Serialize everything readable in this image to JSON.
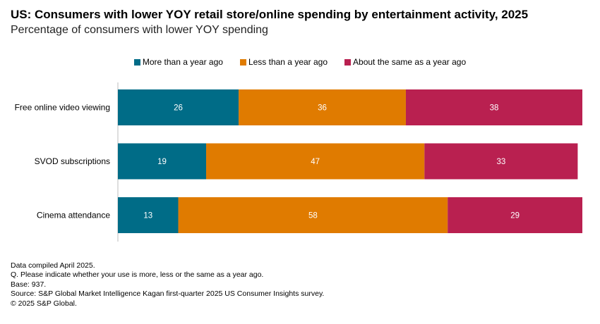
{
  "chart_data": {
    "type": "bar",
    "orientation": "horizontal",
    "stacked": true,
    "title": "US: Consumers with lower YOY retail store/online spending by entertainment activity, 2025",
    "subtitle": "Percentage of consumers with lower YOY spending",
    "categories": [
      "Free online video viewing",
      "SVOD subscriptions",
      "Cinema attendance"
    ],
    "series": [
      {
        "name": "More than a year ago",
        "color": "#006c87",
        "values": [
          26,
          19,
          13
        ]
      },
      {
        "name": "Less than a year ago",
        "color": "#e07b00",
        "values": [
          36,
          47,
          58
        ]
      },
      {
        "name": "About the same as a year ago",
        "color": "#b92050",
        "values": [
          38,
          33,
          29
        ]
      }
    ],
    "xlim": [
      0,
      100
    ],
    "legend": "top-center",
    "grid": false,
    "data_labels": true
  },
  "footnotes": [
    "Data compiled April 2025.",
    "Q. Please indicate whether your use is more, less or the same as a year ago.",
    "Base: 937.",
    "Source: S&P Global Market Intelligence Kagan first-quarter 2025 US Consumer Insights survey.",
    "© 2025 S&P Global."
  ]
}
